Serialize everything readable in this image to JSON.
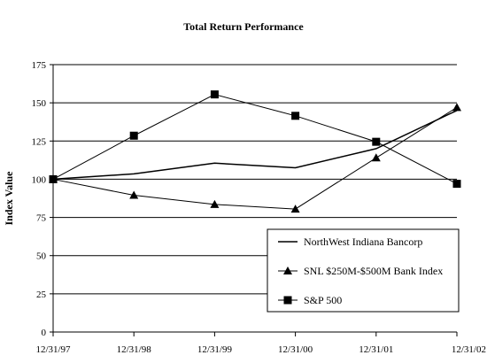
{
  "chart_data": {
    "type": "line",
    "title": "Total Return Performance",
    "xlabel": "",
    "ylabel": "Index Value",
    "categories": [
      "12/31/97",
      "12/31/98",
      "12/31/99",
      "12/31/00",
      "12/31/01",
      "12/31/02"
    ],
    "ylim": [
      0,
      175
    ],
    "yticks": [
      0,
      25,
      50,
      75,
      100,
      125,
      150,
      175
    ],
    "grid": true,
    "legend_position": "bottom-right",
    "series": [
      {
        "name": "NorthWest Indiana Bancorp",
        "marker": "none",
        "values": [
          100,
          103.5,
          110.5,
          107.5,
          120,
          145
        ]
      },
      {
        "name": "SNL $250M-$500M Bank Index",
        "marker": "triangle",
        "values": [
          100,
          89.5,
          83.5,
          80.5,
          114,
          147
        ]
      },
      {
        "name": "S&P 500",
        "marker": "square",
        "values": [
          100,
          128.5,
          155.5,
          141.5,
          124.5,
          97
        ]
      }
    ]
  }
}
